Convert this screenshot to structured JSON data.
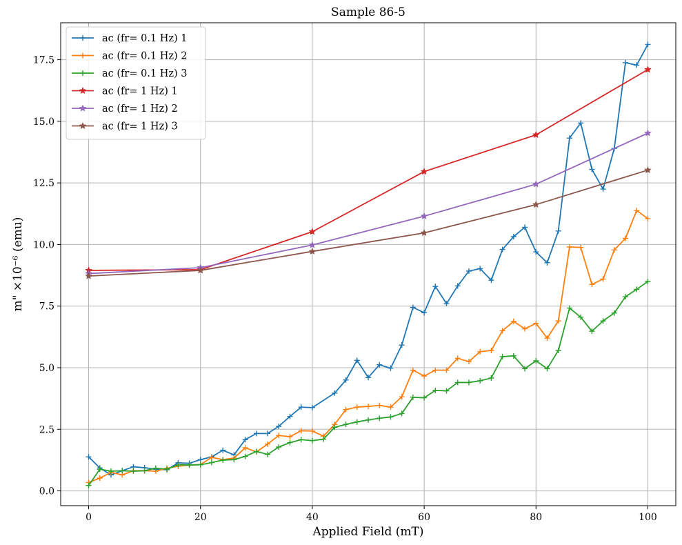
{
  "chart_data": {
    "type": "line",
    "title": "Sample 86-5",
    "xlabel": "Applied Field (mT)",
    "ylabel": "m\" ×10⁻⁶ (emu)",
    "xlim": [
      -5,
      105
    ],
    "ylim": [
      -0.6,
      19.0
    ],
    "xticks": [
      0,
      20,
      40,
      60,
      80,
      100
    ],
    "xtick_labels": [
      "0",
      "20",
      "40",
      "60",
      "80",
      "100"
    ],
    "yticks": [
      0.0,
      2.5,
      5.0,
      7.5,
      10.0,
      12.5,
      15.0,
      17.5
    ],
    "ytick_labels": [
      "0.0",
      "2.5",
      "5.0",
      "7.5",
      "10.0",
      "12.5",
      "15.0",
      "17.5"
    ],
    "grid": true,
    "legend_position": "top-left",
    "series": [
      {
        "name": "ac (fr= 0.1 Hz) 1",
        "color": "#1f77b4",
        "marker": "plus",
        "x": [
          0,
          2,
          4,
          6,
          8,
          10,
          12,
          14,
          16,
          18,
          20,
          22,
          24,
          26,
          28,
          30,
          32,
          34,
          36,
          38,
          40,
          44,
          46,
          48,
          50,
          52,
          54,
          56,
          58,
          60,
          62,
          64,
          66,
          68,
          70,
          72,
          74,
          76,
          78,
          80,
          82,
          84,
          86,
          88,
          90,
          92,
          94,
          96,
          98,
          100
        ],
        "y": [
          1.38,
          0.93,
          0.65,
          0.82,
          0.98,
          0.94,
          0.88,
          0.86,
          1.14,
          1.12,
          1.27,
          1.38,
          1.65,
          1.46,
          2.08,
          2.33,
          2.33,
          2.62,
          3.02,
          3.4,
          3.38,
          3.97,
          4.5,
          5.3,
          4.6,
          5.12,
          4.98,
          5.92,
          7.45,
          7.23,
          8.3,
          7.6,
          8.32,
          8.92,
          9.02,
          8.55,
          9.8,
          10.32,
          10.7,
          9.7,
          9.26,
          10.55,
          14.32,
          14.93,
          13.05,
          12.25,
          13.9,
          17.38,
          17.28,
          18.12
        ]
      },
      {
        "name": "ac (fr= 0.1 Hz) 2",
        "color": "#ff7f0e",
        "marker": "plus",
        "x": [
          0,
          2,
          4,
          6,
          8,
          10,
          12,
          14,
          16,
          18,
          20,
          22,
          24,
          26,
          28,
          30,
          32,
          34,
          36,
          38,
          40,
          42,
          44,
          46,
          48,
          50,
          52,
          54,
          56,
          58,
          60,
          62,
          64,
          66,
          68,
          70,
          72,
          74,
          76,
          78,
          80,
          82,
          84,
          86,
          88,
          90,
          92,
          94,
          96,
          98,
          100
        ],
        "y": [
          0.34,
          0.52,
          0.75,
          0.65,
          0.82,
          0.82,
          0.8,
          0.92,
          1.0,
          1.05,
          1.07,
          1.36,
          1.27,
          1.33,
          1.75,
          1.58,
          1.9,
          2.25,
          2.2,
          2.44,
          2.43,
          2.22,
          2.7,
          3.3,
          3.4,
          3.43,
          3.47,
          3.4,
          3.82,
          4.9,
          4.66,
          4.9,
          4.9,
          5.38,
          5.25,
          5.65,
          5.7,
          6.5,
          6.88,
          6.58,
          6.8,
          6.2,
          6.9,
          9.9,
          9.88,
          8.38,
          8.6,
          9.78,
          10.25,
          11.38,
          11.05
        ]
      },
      {
        "name": "ac (fr= 0.1 Hz) 3",
        "color": "#2ca02c",
        "marker": "plus",
        "x": [
          0,
          2,
          4,
          6,
          8,
          10,
          12,
          14,
          16,
          18,
          20,
          22,
          24,
          26,
          28,
          30,
          32,
          34,
          36,
          38,
          40,
          42,
          44,
          46,
          48,
          50,
          52,
          54,
          56,
          58,
          60,
          62,
          64,
          66,
          68,
          70,
          72,
          74,
          76,
          78,
          80,
          82,
          84,
          86,
          88,
          90,
          92,
          94,
          96,
          98,
          100
        ],
        "y": [
          0.22,
          0.88,
          0.8,
          0.82,
          0.8,
          0.82,
          0.92,
          0.88,
          1.06,
          1.05,
          1.06,
          1.15,
          1.25,
          1.27,
          1.4,
          1.6,
          1.48,
          1.78,
          1.96,
          2.08,
          2.04,
          2.1,
          2.58,
          2.7,
          2.8,
          2.88,
          2.95,
          3.0,
          3.14,
          3.8,
          3.78,
          4.08,
          4.06,
          4.4,
          4.4,
          4.47,
          4.58,
          5.45,
          5.48,
          4.96,
          5.28,
          4.96,
          5.7,
          7.42,
          7.05,
          6.48,
          6.9,
          7.22,
          7.88,
          8.18,
          8.5
        ]
      },
      {
        "name": "ac (fr= 1 Hz) 1",
        "color": "#d62728",
        "marker": "star",
        "x": [
          0,
          20,
          40,
          60,
          80,
          100
        ],
        "y": [
          8.95,
          8.98,
          10.52,
          12.96,
          14.45,
          17.1
        ]
      },
      {
        "name": "ac (fr= 1 Hz) 2",
        "color": "#9467bd",
        "marker": "star",
        "x": [
          0,
          20,
          40,
          60,
          80,
          100
        ],
        "y": [
          8.82,
          9.06,
          9.98,
          11.15,
          12.45,
          14.52
        ]
      },
      {
        "name": "ac (fr= 1 Hz) 3",
        "color": "#8c564b",
        "marker": "star",
        "x": [
          0,
          20,
          40,
          60,
          80,
          100
        ],
        "y": [
          8.72,
          8.95,
          9.72,
          10.47,
          11.62,
          13.02
        ]
      }
    ]
  }
}
